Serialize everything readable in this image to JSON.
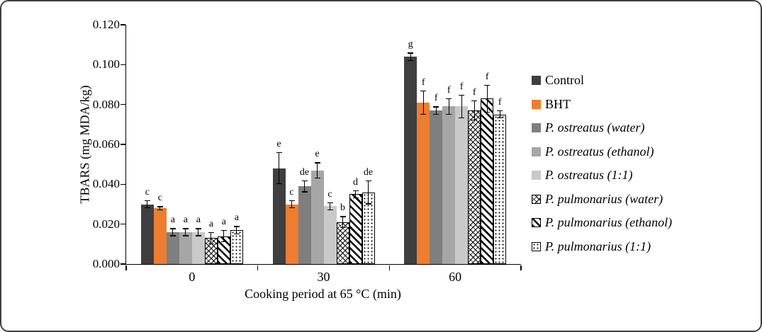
{
  "figure": {
    "ylabel": "TBARS (mg MDA/kg)",
    "xlabel": "Cooking period at 65 °C (min)"
  },
  "chart_data": {
    "type": "bar",
    "title": "",
    "xlabel": "Cooking period at 65 °C (min)",
    "ylabel": "TBARS (mg MDA/kg)",
    "categories": [
      "0",
      "30",
      "60"
    ],
    "ylim": [
      0,
      0.12
    ],
    "ytick_step": 0.02,
    "grid": false,
    "legend_position": "right",
    "series": [
      {
        "name": "Control",
        "italic": false,
        "pattern": "solid",
        "color": "#3f3f3f",
        "values": [
          0.03,
          0.048,
          0.104
        ],
        "errors": [
          0.002,
          0.008,
          0.002
        ],
        "labels": [
          "c",
          "e",
          "g"
        ]
      },
      {
        "name": "BHT",
        "italic": false,
        "pattern": "solid",
        "color": "#ed7d31",
        "values": [
          0.028,
          0.03,
          0.081
        ],
        "errors": [
          0.001,
          0.002,
          0.006
        ],
        "labels": [
          "c",
          "c",
          "f"
        ]
      },
      {
        "name": "P. ostreatus (water)",
        "italic": true,
        "pattern": "solid",
        "color": "#7f7f7f",
        "values": [
          0.016,
          0.039,
          0.077
        ],
        "errors": [
          0.002,
          0.003,
          0.002
        ],
        "labels": [
          "a",
          "de",
          "f"
        ]
      },
      {
        "name": "P. ostreatus (ethanol)",
        "italic": true,
        "pattern": "solid",
        "color": "#a6a6a6",
        "values": [
          0.016,
          0.047,
          0.079
        ],
        "errors": [
          0.002,
          0.004,
          0.004
        ],
        "labels": [
          "a",
          "e",
          "f"
        ]
      },
      {
        "name": "P. ostreatus (1:1)",
        "italic": true,
        "pattern": "solid",
        "color": "#c9c9c9",
        "values": [
          0.016,
          0.029,
          0.079
        ],
        "errors": [
          0.002,
          0.002,
          0.006
        ],
        "labels": [
          "a",
          "c",
          "f"
        ]
      },
      {
        "name": "P. pulmonarius (water)",
        "italic": true,
        "pattern": "crosshatch",
        "color": "#000000",
        "values": [
          0.013,
          0.021,
          0.077
        ],
        "errors": [
          0.003,
          0.003,
          0.005
        ],
        "labels": [
          "a",
          "b",
          "f"
        ]
      },
      {
        "name": "P. pulmonarius (ethanol)",
        "italic": true,
        "pattern": "diagonal",
        "color": "#000000",
        "values": [
          0.014,
          0.035,
          0.083
        ],
        "errors": [
          0.003,
          0.002,
          0.007
        ],
        "labels": [
          "a",
          "d",
          "f"
        ]
      },
      {
        "name": "P. pulmonarius (1:1)",
        "italic": true,
        "pattern": "dots",
        "color": "#000000",
        "values": [
          0.017,
          0.036,
          0.075
        ],
        "errors": [
          0.002,
          0.006,
          0.002
        ],
        "labels": [
          "a",
          "de",
          "f"
        ]
      }
    ]
  }
}
